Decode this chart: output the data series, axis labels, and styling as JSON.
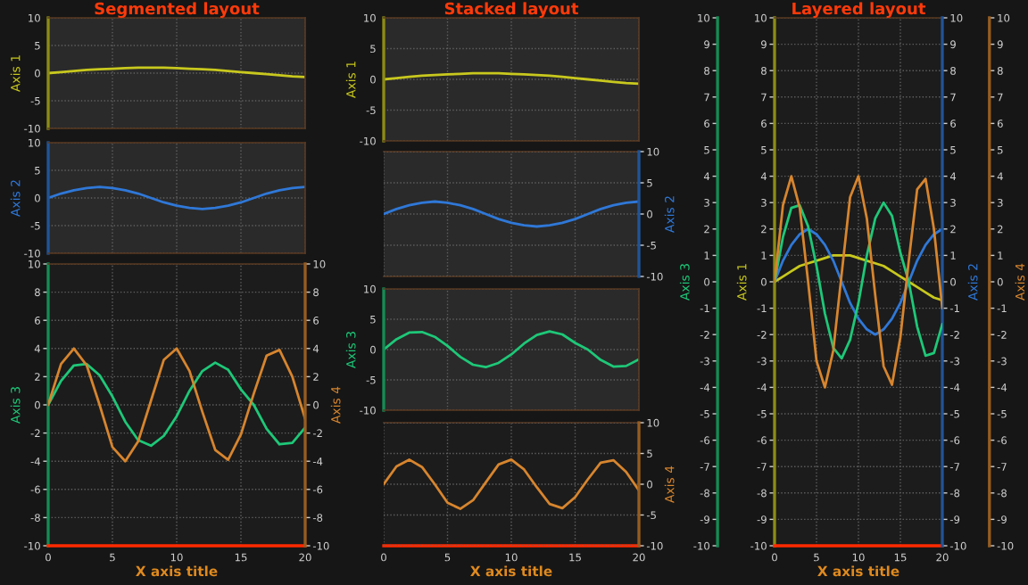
{
  "chart_data": [
    {
      "type": "line",
      "title": "Segmented layout",
      "ylabel": "Axis 1",
      "x": [
        0,
        1,
        2,
        3,
        4,
        5,
        6,
        7,
        8,
        9,
        10,
        11,
        12,
        13,
        14,
        15,
        16,
        17,
        18,
        19,
        20
      ],
      "xlim": [
        0,
        20
      ],
      "xticks": [
        0,
        5,
        10,
        15,
        20
      ],
      "ylim": [
        -10,
        10
      ],
      "yticks": [
        -10,
        -5,
        0,
        5,
        10
      ],
      "grid": true,
      "tick_labels": "y",
      "series": [
        {
          "color": "#c8c81e",
          "axis": "y",
          "values": [
            0,
            0.2,
            0.4,
            0.6,
            0.7,
            0.8,
            0.9,
            1,
            1,
            1,
            0.9,
            0.8,
            0.7,
            0.6,
            0.4,
            0.2,
            0,
            -0.2,
            -0.4,
            -0.6,
            -0.7
          ]
        }
      ]
    },
    {
      "type": "line",
      "ylabel": "Axis 2",
      "x": [
        0,
        1,
        2,
        3,
        4,
        5,
        6,
        7,
        8,
        9,
        10,
        11,
        12,
        13,
        14,
        15,
        16,
        17,
        18,
        19,
        20
      ],
      "xlim": [
        0,
        20
      ],
      "xticks": [
        0,
        5,
        10,
        15,
        20
      ],
      "ylim": [
        -10,
        10
      ],
      "yticks": [
        -10,
        -5,
        0,
        5,
        10
      ],
      "grid": true,
      "tick_labels": "y",
      "series": [
        {
          "color": "#2f78d8",
          "axis": "y",
          "values": [
            0,
            0.8,
            1.4,
            1.8,
            2,
            1.8,
            1.4,
            0.8,
            0,
            -0.8,
            -1.4,
            -1.8,
            -2,
            -1.8,
            -1.4,
            -0.8,
            0,
            0.8,
            1.4,
            1.8,
            2
          ]
        }
      ]
    },
    {
      "type": "line",
      "xlabel": "X axis title",
      "ylabel": "Axis 3",
      "y2label": "Axis 4",
      "x": [
        0,
        1,
        2,
        3,
        4,
        5,
        6,
        7,
        8,
        9,
        10,
        11,
        12,
        13,
        14,
        15,
        16,
        17,
        18,
        19,
        20
      ],
      "xlim": [
        0,
        20
      ],
      "xticks": [
        0,
        5,
        10,
        15,
        20
      ],
      "ylim": [
        -10,
        10
      ],
      "yticks": [
        -10,
        -8,
        -6,
        -4,
        -2,
        0,
        2,
        4,
        6,
        8,
        10
      ],
      "y2lim": [
        -10,
        10
      ],
      "y2ticks": [
        -10,
        -8,
        -6,
        -4,
        -2,
        0,
        2,
        4,
        6,
        8,
        10
      ],
      "grid": true,
      "series": [
        {
          "color": "#1ec878",
          "axis": "y",
          "values": [
            0,
            1.7,
            2.8,
            2.9,
            2.1,
            0.6,
            -1.2,
            -2.5,
            -2.9,
            -2.2,
            -0.8,
            1,
            2.4,
            3,
            2.5,
            1.1,
            0,
            -1.7,
            -2.8,
            -2.7,
            -1.6
          ]
        },
        {
          "color": "#d7852e",
          "axis": "y2",
          "values": [
            0,
            2.9,
            4,
            2.8,
            0,
            -3,
            -4,
            -2.6,
            0.3,
            3.2,
            4,
            2.4,
            -0.5,
            -3.2,
            -3.9,
            -2.1,
            0.8,
            3.5,
            3.9,
            2,
            -1
          ]
        }
      ]
    },
    {
      "type": "line",
      "title": "Stacked layout",
      "ylabel": "Axis 1",
      "x": [
        0,
        1,
        2,
        3,
        4,
        5,
        6,
        7,
        8,
        9,
        10,
        11,
        12,
        13,
        14,
        15,
        16,
        17,
        18,
        19,
        20
      ],
      "xlim": [
        0,
        20
      ],
      "xticks": [
        0,
        5,
        10,
        15,
        20
      ],
      "ylim": [
        -10,
        10
      ],
      "yticks": [
        -10,
        -5,
        0,
        5,
        10
      ],
      "grid": true,
      "tick_labels": "y",
      "series": [
        {
          "color": "#c8c81e",
          "axis": "y",
          "values": [
            0,
            0.2,
            0.4,
            0.6,
            0.7,
            0.8,
            0.9,
            1,
            1,
            1,
            0.9,
            0.8,
            0.7,
            0.6,
            0.4,
            0.2,
            0,
            -0.2,
            -0.4,
            -0.6,
            -0.7
          ]
        }
      ]
    },
    {
      "type": "line",
      "y2label": "Axis 2",
      "x": [
        0,
        1,
        2,
        3,
        4,
        5,
        6,
        7,
        8,
        9,
        10,
        11,
        12,
        13,
        14,
        15,
        16,
        17,
        18,
        19,
        20
      ],
      "xlim": [
        0,
        20
      ],
      "xticks": [
        0,
        5,
        10,
        15,
        20
      ],
      "y2lim": [
        -10,
        10
      ],
      "y2ticks": [
        -10,
        -5,
        0,
        5,
        10
      ],
      "grid": true,
      "tick_labels": "y",
      "series": [
        {
          "color": "#2f78d8",
          "axis": "y2",
          "values": [
            0,
            0.8,
            1.4,
            1.8,
            2,
            1.8,
            1.4,
            0.8,
            0,
            -0.8,
            -1.4,
            -1.8,
            -2,
            -1.8,
            -1.4,
            -0.8,
            0,
            0.8,
            1.4,
            1.8,
            2
          ]
        }
      ]
    },
    {
      "type": "line",
      "ylabel": "Axis 3",
      "x": [
        0,
        1,
        2,
        3,
        4,
        5,
        6,
        7,
        8,
        9,
        10,
        11,
        12,
        13,
        14,
        15,
        16,
        17,
        18,
        19,
        20
      ],
      "xlim": [
        0,
        20
      ],
      "xticks": [
        0,
        5,
        10,
        15,
        20
      ],
      "ylim": [
        -10,
        10
      ],
      "yticks": [
        -10,
        -5,
        0,
        5,
        10
      ],
      "grid": true,
      "tick_labels": "y",
      "series": [
        {
          "color": "#1ec878",
          "axis": "y",
          "values": [
            0,
            1.7,
            2.8,
            2.9,
            2.1,
            0.6,
            -1.2,
            -2.5,
            -2.9,
            -2.2,
            -0.8,
            1,
            2.4,
            3,
            2.5,
            1.1,
            0,
            -1.7,
            -2.8,
            -2.7,
            -1.6
          ]
        }
      ]
    },
    {
      "type": "line",
      "xlabel": "X axis title",
      "y2label": "Axis 4",
      "x": [
        0,
        1,
        2,
        3,
        4,
        5,
        6,
        7,
        8,
        9,
        10,
        11,
        12,
        13,
        14,
        15,
        16,
        17,
        18,
        19,
        20
      ],
      "xlim": [
        0,
        20
      ],
      "xticks": [
        0,
        5,
        10,
        15,
        20
      ],
      "y2lim": [
        -10,
        10
      ],
      "y2ticks": [
        -10,
        -5,
        0,
        5,
        10
      ],
      "grid": true,
      "series": [
        {
          "color": "#d7852e",
          "axis": "y2",
          "values": [
            0,
            2.9,
            4,
            2.8,
            0,
            -3,
            -4,
            -2.6,
            0.3,
            3.2,
            4,
            2.4,
            -0.5,
            -3.2,
            -3.9,
            -2.1,
            0.8,
            3.5,
            3.9,
            2,
            -1
          ]
        }
      ]
    },
    {
      "type": "line",
      "title": "Layered layout",
      "xlabel": "X axis title",
      "ylabel": "Axis 1",
      "y2label": "Axis 2",
      "y3label": "Axis 3",
      "x": [
        0,
        1,
        2,
        3,
        4,
        5,
        6,
        7,
        8,
        9,
        10,
        11,
        12,
        13,
        14,
        15,
        16,
        17,
        18,
        19,
        20
      ],
      "xlim": [
        0,
        20
      ],
      "xticks": [
        0,
        5,
        10,
        15,
        20
      ],
      "ylim": [
        -10,
        10
      ],
      "yticks": [
        -10,
        -9,
        -8,
        -7,
        -6,
        -5,
        -4,
        -3,
        -2,
        -1,
        0,
        1,
        2,
        3,
        4,
        5,
        6,
        7,
        8,
        9,
        10
      ],
      "y2lim": [
        -10,
        10
      ],
      "y2ticks": [
        -10,
        -9,
        -8,
        -7,
        -6,
        -5,
        -4,
        -3,
        -2,
        -1,
        0,
        1,
        2,
        3,
        4,
        5,
        6,
        7,
        8,
        9,
        10
      ],
      "y3lim": [
        -10,
        10
      ],
      "y3ticks": [
        -10,
        -9,
        -8,
        -7,
        -6,
        -5,
        -4,
        -3,
        -2,
        -1,
        0,
        1,
        2,
        3,
        4,
        5,
        6,
        7,
        8,
        9,
        10
      ],
      "grid": true,
      "series": [
        {
          "color": "#c8c81e",
          "axis": "y",
          "values": [
            0,
            0.2,
            0.4,
            0.6,
            0.7,
            0.8,
            0.9,
            1,
            1,
            1,
            0.9,
            0.8,
            0.7,
            0.6,
            0.4,
            0.2,
            0,
            -0.2,
            -0.4,
            -0.6,
            -0.7
          ]
        },
        {
          "color": "#2f78d8",
          "axis": "y2",
          "values": [
            0,
            0.8,
            1.4,
            1.8,
            2,
            1.8,
            1.4,
            0.8,
            0,
            -0.8,
            -1.4,
            -1.8,
            -2,
            -1.8,
            -1.4,
            -0.8,
            0,
            0.8,
            1.4,
            1.8,
            2
          ]
        },
        {
          "color": "#1ec878",
          "axis": "y3",
          "values": [
            0,
            1.7,
            2.8,
            2.9,
            2.1,
            0.6,
            -1.2,
            -2.5,
            -2.9,
            -2.2,
            -0.8,
            1,
            2.4,
            3,
            2.5,
            1.1,
            0,
            -1.7,
            -2.8,
            -2.7,
            -1.6
          ]
        }
      ]
    },
    {
      "type": "line",
      "y2label": "Axis 4",
      "x": [
        0,
        1,
        2,
        3,
        4,
        5,
        6,
        7,
        8,
        9,
        10,
        11,
        12,
        13,
        14,
        15,
        16,
        17,
        18,
        19,
        20
      ],
      "xlim": [
        0,
        20
      ],
      "xticks": [
        0,
        5,
        10,
        15,
        20
      ],
      "y2lim": [
        -10,
        10
      ],
      "y2ticks": [
        -10,
        -9,
        -8,
        -7,
        -6,
        -5,
        -4,
        -3,
        -2,
        -1,
        0,
        1,
        2,
        3,
        4,
        5,
        6,
        7,
        8,
        9,
        10
      ],
      "tick_labels": "y",
      "series": [
        {
          "color": "#d7852e",
          "axis": "y2",
          "values": [
            0,
            2.9,
            4,
            2.8,
            0,
            -3,
            -4,
            -2.6,
            0.3,
            3.2,
            4,
            2.4,
            -0.5,
            -3.2,
            -3.9,
            -2.1,
            0.8,
            3.5,
            3.9,
            2,
            -1
          ]
        }
      ]
    }
  ]
}
